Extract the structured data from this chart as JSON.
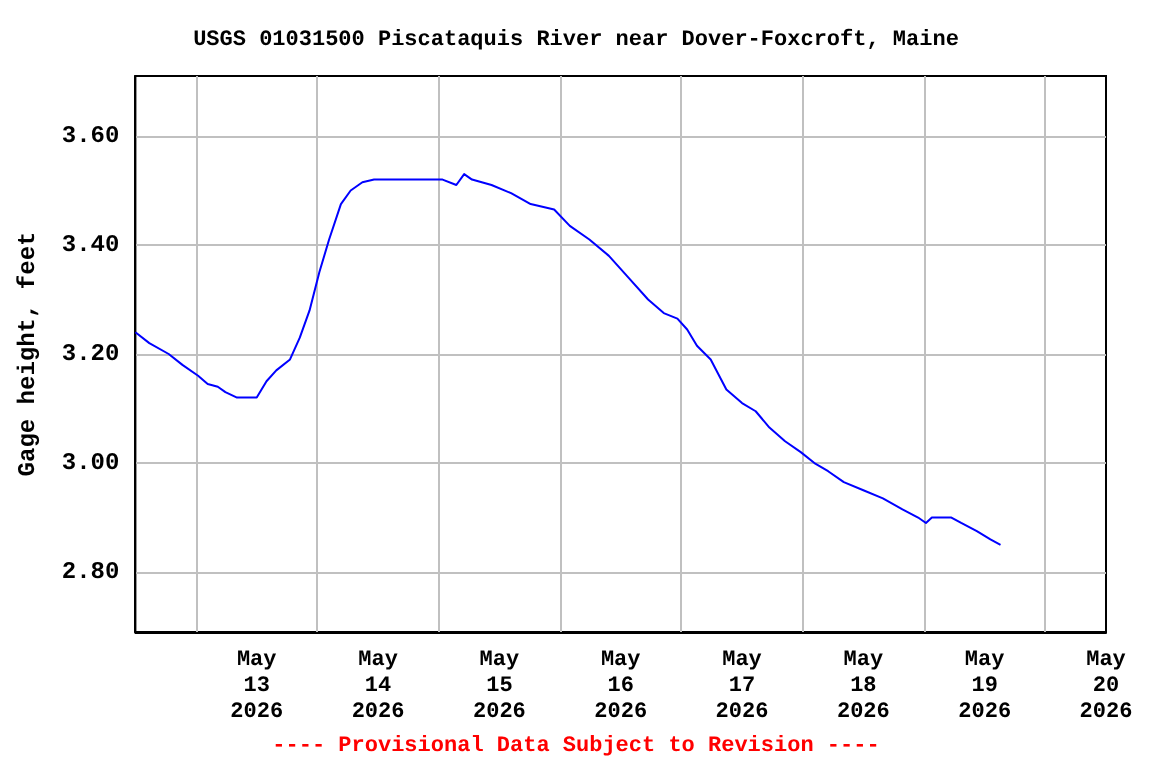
{
  "chart_data": {
    "type": "line",
    "title": "USGS 01031500 Piscataquis River near Dover-Foxcroft, Maine",
    "ylabel": "Gage height, feet",
    "annotations": [
      "---- Provisional Data Subject to Revision ----"
    ],
    "x": [
      "2026-05-12T12:00",
      "2026-05-12T14:45",
      "2026-05-12T18:35",
      "2026-05-12T21:18",
      "2026-05-13T00:24",
      "2026-05-13T02:18",
      "2026-05-13T04:18",
      "2026-05-13T05:48",
      "2026-05-13T08:06",
      "2026-05-13T12:00",
      "2026-05-13T13:56",
      "2026-05-13T15:52",
      "2026-05-13T18:35",
      "2026-05-13T20:31",
      "2026-05-13T22:27",
      "2026-05-14T00:23",
      "2026-05-14T02:19",
      "2026-05-14T04:39",
      "2026-05-14T06:35",
      "2026-05-14T08:54",
      "2026-05-14T11:13",
      "2026-05-14T15:06",
      "2026-05-15T00:46",
      "2026-05-15T03:29",
      "2026-05-15T05:02",
      "2026-05-15T06:35",
      "2026-05-15T10:27",
      "2026-05-15T14:19",
      "2026-05-15T18:11",
      "2026-05-15T22:50",
      "2026-05-16T01:56",
      "2026-05-16T05:48",
      "2026-05-16T09:40",
      "2026-05-16T13:32",
      "2026-05-16T17:25",
      "2026-05-16T20:31",
      "2026-05-16T23:13",
      "2026-05-17T01:09",
      "2026-05-17T03:05",
      "2026-05-17T05:48",
      "2026-05-17T08:54",
      "2026-05-17T12:00",
      "2026-05-17T14:42",
      "2026-05-17T17:25",
      "2026-05-17T20:31",
      "2026-05-17T23:37",
      "2026-05-18T02:19",
      "2026-05-18T05:02",
      "2026-05-18T08:08",
      "2026-05-18T12:00",
      "2026-05-18T15:52",
      "2026-05-18T19:44",
      "2026-05-18T22:50",
      "2026-05-19T00:23",
      "2026-05-19T01:33",
      "2026-05-19T05:25",
      "2026-05-19T07:21",
      "2026-05-19T10:27",
      "2026-05-19T13:08",
      "2026-05-19T15:08"
    ],
    "series": [
      {
        "color": "#0000ff",
        "values": [
          3.24,
          3.22,
          3.2,
          3.18,
          3.16,
          3.145,
          3.14,
          3.13,
          3.12,
          3.12,
          3.15,
          3.17,
          3.19,
          3.23,
          3.28,
          3.35,
          3.41,
          3.475,
          3.5,
          3.515,
          3.52,
          3.52,
          3.52,
          3.51,
          3.53,
          3.52,
          3.51,
          3.495,
          3.475,
          3.465,
          3.435,
          3.41,
          3.38,
          3.34,
          3.3,
          3.275,
          3.265,
          3.245,
          3.215,
          3.19,
          3.135,
          3.11,
          3.095,
          3.065,
          3.04,
          3.02,
          3.0,
          2.985,
          2.965,
          2.95,
          2.935,
          2.915,
          2.9,
          2.89,
          2.9,
          2.9,
          2.89,
          2.875,
          2.86,
          2.85
        ]
      }
    ],
    "xlim": [
      "2026-05-12T12:00",
      "2026-05-20T12:00"
    ],
    "xticks": [
      {
        "value": "2026-05-13T00:00",
        "label": null
      },
      {
        "value": "2026-05-14T00:00",
        "label": null
      },
      {
        "value": "2026-05-15T00:00",
        "label": null
      },
      {
        "value": "2026-05-16T00:00",
        "label": null
      },
      {
        "value": "2026-05-17T00:00",
        "label": null
      },
      {
        "value": "2026-05-18T00:00",
        "label": null
      },
      {
        "value": "2026-05-19T00:00",
        "label": null
      },
      {
        "value": "2026-05-20T00:00",
        "label": null
      },
      {
        "value": "2026-05-13T12:00",
        "label": "May\n13\n2026"
      },
      {
        "value": "2026-05-14T12:00",
        "label": "May\n14\n2026"
      },
      {
        "value": "2026-05-15T12:00",
        "label": "May\n15\n2026"
      },
      {
        "value": "2026-05-16T12:00",
        "label": "May\n16\n2026"
      },
      {
        "value": "2026-05-17T12:00",
        "label": "May\n17\n2026"
      },
      {
        "value": "2026-05-18T12:00",
        "label": "May\n18\n2026"
      },
      {
        "value": "2026-05-19T12:00",
        "label": "May\n19\n2026"
      },
      {
        "value": "2026-05-20T12:00",
        "label": "May\n20\n2026"
      }
    ],
    "ylim": [
      2.69,
      3.71
    ],
    "yticks": [
      {
        "value": 2.8,
        "label": "2.80"
      },
      {
        "value": 3.0,
        "label": "3.00"
      },
      {
        "value": 3.2,
        "label": "3.20"
      },
      {
        "value": 3.4,
        "label": "3.40"
      },
      {
        "value": 3.6,
        "label": "3.60"
      }
    ],
    "grid": true,
    "marker": "none",
    "line_style": "solid"
  }
}
